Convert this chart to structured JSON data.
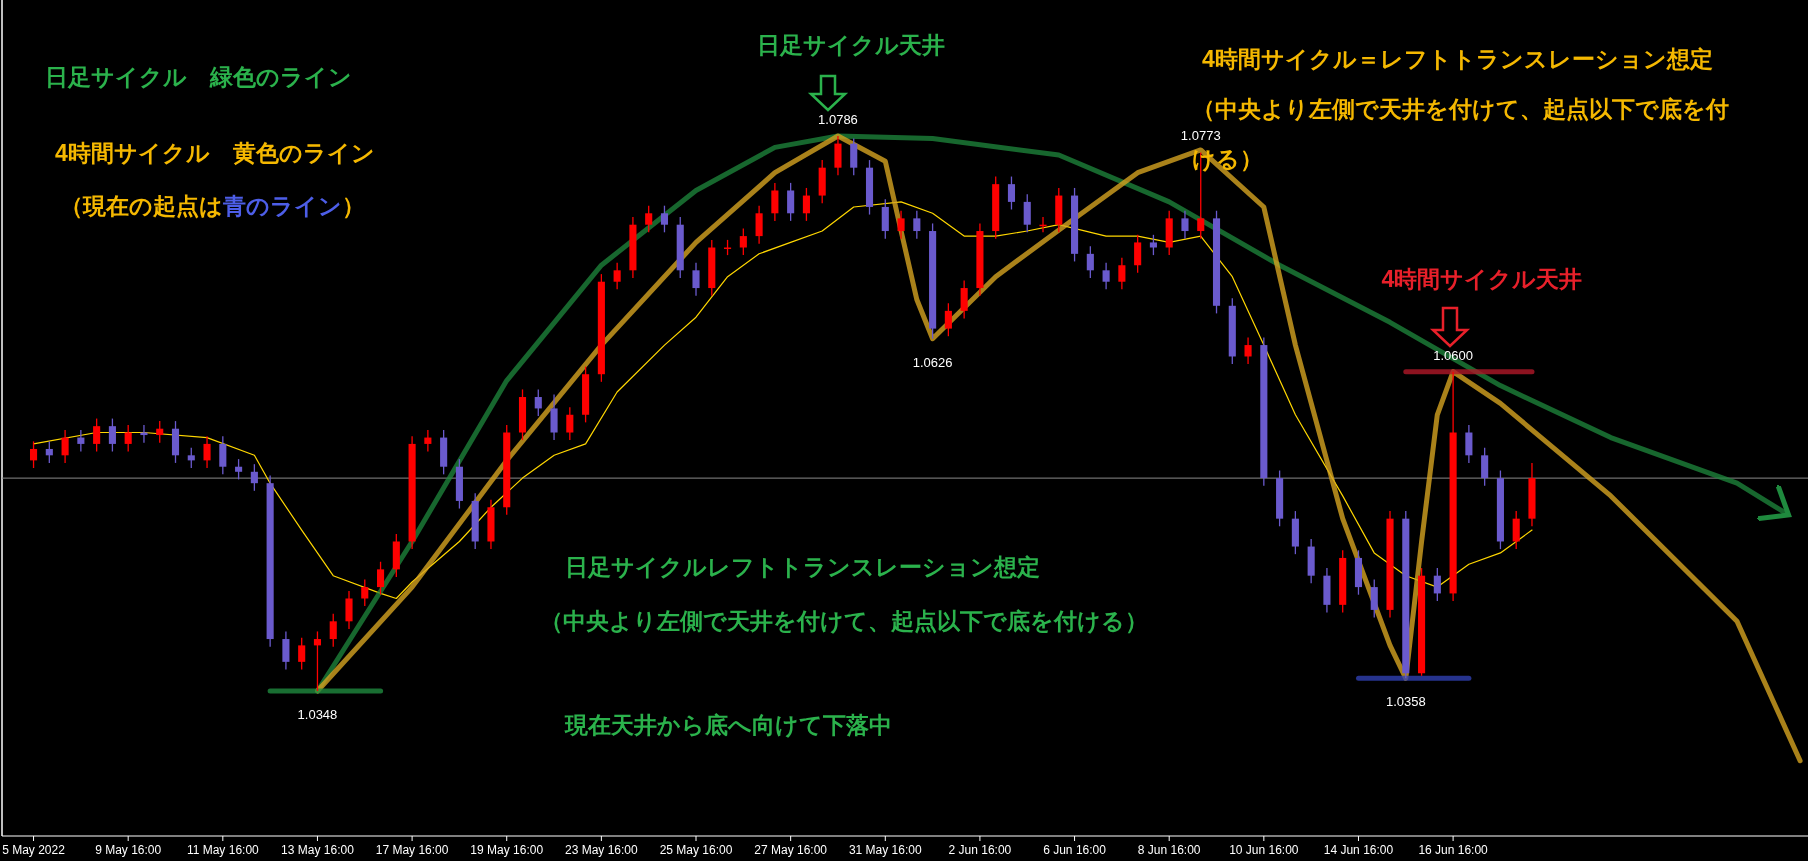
{
  "chart_data": {
    "type": "candlestick",
    "categories": [
      "5 May 2022",
      null,
      null,
      null,
      null,
      null,
      "9 May 16:00",
      null,
      null,
      null,
      null,
      null,
      "11 May 16:00",
      null,
      null,
      null,
      null,
      null,
      "13 May 16:00",
      null,
      null,
      null,
      null,
      null,
      "17 May 16:00",
      null,
      null,
      null,
      null,
      null,
      "19 May 16:00",
      null,
      null,
      null,
      null,
      null,
      "23 May 16:00",
      null,
      null,
      null,
      null,
      null,
      "25 May 16:00",
      null,
      null,
      null,
      null,
      null,
      "27 May 16:00",
      null,
      null,
      null,
      null,
      null,
      "31 May 16:00",
      null,
      null,
      null,
      null,
      null,
      "2 Jun 16:00",
      null,
      null,
      null,
      null,
      null,
      "6 Jun 16:00",
      null,
      null,
      null,
      null,
      null,
      "8 Jun 16:00",
      null,
      null,
      null,
      null,
      null,
      "10 Jun 16:00",
      null,
      null,
      null,
      null,
      null,
      "14 Jun 16:00",
      null,
      null,
      null,
      null,
      null,
      "16 Jun 16:00",
      null,
      null,
      null,
      null,
      null,
      null,
      null,
      null,
      null,
      null,
      null,
      null,
      null,
      null,
      null,
      null,
      null,
      null,
      null,
      null,
      null,
      null
    ],
    "ohlc": [
      [
        1.053,
        1.0545,
        1.0524,
        1.0539
      ],
      [
        1.0539,
        1.0545,
        1.0528,
        1.0534
      ],
      [
        1.0534,
        1.0554,
        1.0528,
        1.0548
      ],
      [
        1.0548,
        1.0554,
        1.0537,
        1.0543
      ],
      [
        1.0543,
        1.0563,
        1.0537,
        1.0557
      ],
      [
        1.0557,
        1.0563,
        1.0537,
        1.0543
      ],
      [
        1.0543,
        1.0558,
        1.0537,
        1.0552
      ],
      [
        1.0552,
        1.0558,
        1.0544,
        1.055
      ],
      [
        1.055,
        1.0561,
        1.0544,
        1.0555
      ],
      [
        1.0555,
        1.0561,
        1.0528,
        1.0534
      ],
      [
        1.0534,
        1.054,
        1.0524,
        1.053
      ],
      [
        1.053,
        1.0549,
        1.0524,
        1.0543
      ],
      [
        1.0543,
        1.0549,
        1.0519,
        1.0525
      ],
      [
        1.0525,
        1.0531,
        1.0515,
        1.0521
      ],
      [
        1.0521,
        1.0527,
        1.0506,
        1.0512
      ],
      [
        1.0512,
        1.0518,
        1.0383,
        1.0389
      ],
      [
        1.0389,
        1.0395,
        1.0365,
        1.0371
      ],
      [
        1.0371,
        1.039,
        1.0365,
        1.0384
      ],
      [
        1.0384,
        1.0395,
        1.0348,
        1.0389
      ],
      [
        1.0389,
        1.0409,
        1.0383,
        1.0403
      ],
      [
        1.0403,
        1.0427,
        1.0397,
        1.0421
      ],
      [
        1.0421,
        1.0436,
        1.0415,
        1.043
      ],
      [
        1.043,
        1.045,
        1.0424,
        1.0444
      ],
      [
        1.0444,
        1.0472,
        1.0438,
        1.0466
      ],
      [
        1.0466,
        1.0549,
        1.046,
        1.0543
      ],
      [
        1.0543,
        1.0554,
        1.0537,
        1.0548
      ],
      [
        1.0548,
        1.0554,
        1.0519,
        1.0525
      ],
      [
        1.0525,
        1.0531,
        1.0492,
        1.0498
      ],
      [
        1.0498,
        1.0504,
        1.046,
        1.0466
      ],
      [
        1.0466,
        1.0499,
        1.046,
        1.0493
      ],
      [
        1.0493,
        1.0558,
        1.0487,
        1.0552
      ],
      [
        1.0552,
        1.0586,
        1.0546,
        1.058
      ],
      [
        1.058,
        1.0586,
        1.0565,
        1.0571
      ],
      [
        1.0571,
        1.0582,
        1.0546,
        1.0552
      ],
      [
        1.0552,
        1.0572,
        1.0546,
        1.0566
      ],
      [
        1.0566,
        1.0604,
        1.056,
        1.0598
      ],
      [
        1.0598,
        1.0677,
        1.0592,
        1.0671
      ],
      [
        1.0671,
        1.0686,
        1.0665,
        1.068
      ],
      [
        1.068,
        1.0722,
        1.0674,
        1.0716
      ],
      [
        1.0716,
        1.0731,
        1.071,
        1.0725
      ],
      [
        1.0725,
        1.0731,
        1.071,
        1.0716
      ],
      [
        1.0716,
        1.0722,
        1.0674,
        1.068
      ],
      [
        1.068,
        1.0686,
        1.066,
        1.0666
      ],
      [
        1.0666,
        1.0704,
        1.066,
        1.0698
      ],
      [
        1.0698,
        1.0704,
        1.0692,
        1.0698
      ],
      [
        1.0698,
        1.0713,
        1.0692,
        1.0707
      ],
      [
        1.0707,
        1.0731,
        1.0701,
        1.0725
      ],
      [
        1.0725,
        1.0749,
        1.0719,
        1.0743
      ],
      [
        1.0743,
        1.0749,
        1.0719,
        1.0725
      ],
      [
        1.0725,
        1.0745,
        1.0719,
        1.0739
      ],
      [
        1.0739,
        1.0767,
        1.0733,
        1.0761
      ],
      [
        1.0761,
        1.0786,
        1.0755,
        1.078
      ],
      [
        1.078,
        1.0784,
        1.0755,
        1.0761
      ],
      [
        1.0761,
        1.0767,
        1.0724,
        1.073
      ],
      [
        1.073,
        1.0736,
        1.0705,
        1.0711
      ],
      [
        1.0711,
        1.0727,
        1.0705,
        1.0721
      ],
      [
        1.0721,
        1.0727,
        1.0705,
        1.0711
      ],
      [
        1.0711,
        1.0717,
        1.0626,
        1.0634
      ],
      [
        1.0634,
        1.0654,
        1.0628,
        1.0648
      ],
      [
        1.0648,
        1.0672,
        1.0642,
        1.0666
      ],
      [
        1.0666,
        1.0717,
        1.066,
        1.0711
      ],
      [
        1.0711,
        1.0754,
        1.0705,
        1.0748
      ],
      [
        1.0748,
        1.0754,
        1.0728,
        1.0734
      ],
      [
        1.0734,
        1.074,
        1.071,
        1.0716
      ],
      [
        1.0716,
        1.0722,
        1.071,
        1.0716
      ],
      [
        1.0716,
        1.0745,
        1.071,
        1.0739
      ],
      [
        1.0739,
        1.0745,
        1.0687,
        1.0693
      ],
      [
        1.0693,
        1.0699,
        1.0674,
        1.068
      ],
      [
        1.068,
        1.0686,
        1.0665,
        1.0671
      ],
      [
        1.0671,
        1.069,
        1.0665,
        1.0684
      ],
      [
        1.0684,
        1.0708,
        1.0678,
        1.0702
      ],
      [
        1.0702,
        1.0708,
        1.0692,
        1.0698
      ],
      [
        1.0698,
        1.0727,
        1.0692,
        1.0721
      ],
      [
        1.0721,
        1.0727,
        1.0705,
        1.0711
      ],
      [
        1.0711,
        1.0773,
        1.0705,
        1.0721
      ],
      [
        1.0721,
        1.0727,
        1.0646,
        1.0652
      ],
      [
        1.0652,
        1.0658,
        1.0606,
        1.0612
      ],
      [
        1.0612,
        1.0627,
        1.0606,
        1.0621
      ],
      [
        1.0621,
        1.0627,
        1.051,
        1.0516
      ],
      [
        1.0516,
        1.0522,
        1.0478,
        1.0484
      ],
      [
        1.0484,
        1.049,
        1.0456,
        1.0462
      ],
      [
        1.0462,
        1.0468,
        1.0433,
        1.0439
      ],
      [
        1.0439,
        1.0445,
        1.041,
        1.0416
      ],
      [
        1.0416,
        1.0459,
        1.041,
        1.0453
      ],
      [
        1.0453,
        1.0459,
        1.0424,
        1.043
      ],
      [
        1.043,
        1.0436,
        1.0406,
        1.0412
      ],
      [
        1.0412,
        1.049,
        1.0406,
        1.0484
      ],
      [
        1.0484,
        1.049,
        1.0358,
        1.0362
      ],
      [
        1.0362,
        1.0445,
        1.036,
        1.0439
      ],
      [
        1.0439,
        1.0445,
        1.0419,
        1.0425
      ],
      [
        1.0425,
        1.06,
        1.0419,
        1.0552
      ],
      [
        1.0552,
        1.0558,
        1.0528,
        1.0534
      ],
      [
        1.0534,
        1.054,
        1.051,
        1.0516
      ],
      [
        1.0516,
        1.0522,
        1.046,
        1.0466
      ],
      [
        1.0466,
        1.049,
        1.046,
        1.0484
      ],
      [
        1.0484,
        1.0528,
        1.0478,
        1.0516
      ],
      null,
      null,
      null,
      null,
      null,
      null,
      null,
      null,
      null,
      null,
      null,
      null,
      null,
      null,
      null,
      null,
      null
    ],
    "colors": [
      "#ff0000",
      "#6a5acd",
      "#ff0000",
      "#6a5acd",
      "#ff0000",
      "#6a5acd",
      "#ff0000",
      "#6a5acd",
      "#ff0000",
      "#6a5acd",
      "#6a5acd",
      "#ff0000",
      "#6a5acd",
      "#6a5acd",
      "#6a5acd",
      "#6a5acd",
      "#6a5acd",
      "#ff0000",
      "#ff0000",
      "#ff0000",
      "#ff0000",
      "#ff0000",
      "#ff0000",
      "#ff0000",
      "#ff0000",
      "#ff0000",
      "#6a5acd",
      "#6a5acd",
      "#6a5acd",
      "#ff0000",
      "#ff0000",
      "#ff0000",
      "#6a5acd",
      "#6a5acd",
      "#ff0000",
      "#ff0000",
      "#ff0000",
      "#ff0000",
      "#ff0000",
      "#ff0000",
      "#6a5acd",
      "#6a5acd",
      "#6a5acd",
      "#ff0000",
      "#ff0000",
      "#ff0000",
      "#ff0000",
      "#ff0000",
      "#6a5acd",
      "#ff0000",
      "#ff0000",
      "#ff0000",
      "#6a5acd",
      "#6a5acd",
      "#6a5acd",
      "#ff0000",
      "#6a5acd",
      "#6a5acd",
      "#ff0000",
      "#ff0000",
      "#ff0000",
      "#ff0000",
      "#6a5acd",
      "#6a5acd",
      "#ff0000",
      "#ff0000",
      "#6a5acd",
      "#6a5acd",
      "#6a5acd",
      "#ff0000",
      "#ff0000",
      "#6a5acd",
      "#ff0000",
      "#6a5acd",
      "#ff0000",
      "#6a5acd",
      "#6a5acd",
      "#ff0000",
      "#6a5acd",
      "#6a5acd",
      "#6a5acd",
      "#6a5acd",
      "#6a5acd",
      "#ff0000",
      "#6a5acd",
      "#6a5acd",
      "#ff0000",
      "#6a5acd",
      "#ff0000",
      "#6a5acd",
      "#ff0000",
      "#6a5acd",
      "#6a5acd",
      "#6a5acd",
      "#ff0000",
      "#ff0000",
      null,
      null,
      null,
      null,
      null,
      null,
      null,
      null,
      null,
      null,
      null,
      null,
      null,
      null,
      null,
      null,
      null
    ],
    "series": [
      {
        "type": "line",
        "color": "#ffd700",
        "values": [
          1.0543,
          null,
          null,
          null,
          1.0552,
          null,
          null,
          1.0552,
          null,
          null,
          null,
          1.0548,
          null,
          null,
          1.0534,
          1.0512,
          null,
          1.0475,
          null,
          1.0439,
          null,
          null,
          1.0425,
          1.0421,
          1.0434,
          null,
          null,
          1.0466,
          null,
          1.0493,
          null,
          1.0516,
          null,
          1.0534,
          null,
          1.0543,
          null,
          1.0584,
          null,
          null,
          1.0621,
          null,
          1.0643,
          null,
          1.0675,
          null,
          1.0693,
          null,
          1.0702,
          null,
          1.0711,
          null,
          1.073,
          null,
          null,
          1.0734,
          null,
          1.0725,
          null,
          1.0707,
          null,
          1.0707,
          null,
          1.0711,
          null,
          1.0716,
          null,
          null,
          1.0707,
          null,
          1.0707,
          null,
          1.0702,
          null,
          1.0707,
          null,
          1.0675,
          null,
          1.0621,
          null,
          1.0566,
          null,
          null,
          1.0502,
          null,
          1.0457,
          null,
          1.0439,
          null,
          1.043,
          null,
          1.0448,
          null,
          1.0457,
          null,
          1.0475,
          null,
          null,
          null,
          null,
          null,
          null,
          null,
          null,
          null,
          null,
          null,
          null,
          null,
          null,
          null,
          null,
          null
        ]
      },
      {
        "type": "line",
        "color": "#1f8a3e",
        "values": [
          null,
          null,
          null,
          null,
          null,
          null,
          null,
          null,
          null,
          null,
          null,
          null,
          null,
          null,
          null,
          null,
          null,
          null,
          1.0348,
          null,
          null,
          null,
          null,
          null,
          1.0466,
          null,
          null,
          null,
          null,
          null,
          1.0593,
          null,
          null,
          null,
          null,
          null,
          1.0684,
          null,
          null,
          null,
          null,
          null,
          1.0743,
          null,
          null,
          null,
          null,
          1.0777,
          null,
          null,
          null,
          1.0786,
          null,
          null,
          null,
          null,
          null,
          1.0784,
          null,
          null,
          null,
          null,
          null,
          null,
          null,
          1.0771,
          null,
          null,
          null,
          null,
          null,
          null,
          1.0734,
          null,
          null,
          null,
          null,
          null,
          null,
          1.0684,
          null,
          null,
          null,
          null,
          null,
          null,
          1.0639,
          null,
          null,
          null,
          null,
          null,
          null,
          1.0589,
          null,
          null,
          null,
          null,
          null,
          null,
          1.0548,
          null,
          null,
          null,
          null,
          null,
          null,
          null,
          1.0512,
          null,
          null,
          1.0489,
          null
        ]
      },
      {
        "type": "line",
        "color": "#d4a320",
        "values": [
          null,
          null,
          null,
          null,
          null,
          null,
          null,
          null,
          null,
          null,
          null,
          null,
          null,
          null,
          null,
          null,
          null,
          null,
          1.0348,
          null,
          null,
          null,
          null,
          null,
          1.043,
          null,
          null,
          null,
          null,
          null,
          1.053,
          null,
          null,
          null,
          null,
          null,
          1.0621,
          null,
          null,
          null,
          null,
          null,
          1.0702,
          null,
          null,
          null,
          null,
          1.0757,
          null,
          null,
          null,
          1.0786,
          null,
          null,
          1.0766,
          1.0711,
          1.0657,
          1.0626,
          null,
          null,
          null,
          1.0675,
          null,
          null,
          null,
          null,
          1.0721,
          null,
          null,
          null,
          1.0757,
          null,
          null,
          null,
          1.0775,
          null,
          null,
          null,
          1.073,
          null,
          1.0621,
          null,
          null,
          1.0484,
          null,
          null,
          1.0384,
          1.0358,
          1.0466,
          1.0566,
          1.06,
          null,
          null,
          1.0575,
          null,
          null,
          null,
          null,
          null,
          null,
          1.0502,
          null,
          null,
          null,
          null,
          null,
          null,
          null,
          1.0403,
          null,
          null,
          null,
          1.0293
        ]
      },
      {
        "type": "line",
        "color": "#1f8a3e",
        "values": [
          null,
          null,
          null,
          null,
          null,
          null,
          null,
          null,
          null,
          null,
          null,
          null,
          null,
          null,
          null,
          1.0348,
          1.0348,
          1.0348,
          1.0348,
          1.0348,
          1.0348,
          1.0348,
          1.0348,
          null,
          null,
          null,
          null,
          null,
          null,
          null,
          null,
          null,
          null,
          null,
          null,
          null,
          null,
          null,
          null,
          null,
          null,
          null,
          null,
          null,
          null,
          null,
          null,
          null,
          null,
          null,
          null,
          null,
          null,
          null,
          null,
          null,
          null,
          null,
          null,
          null,
          null,
          null,
          null,
          null,
          null,
          null,
          null,
          null,
          null,
          null,
          null,
          null,
          null,
          null,
          null,
          null,
          null,
          null,
          null,
          null,
          null,
          null,
          null,
          null,
          null,
          null,
          null,
          null,
          null,
          null,
          null,
          null,
          null,
          null,
          null,
          null,
          null,
          null,
          null,
          null,
          null,
          null,
          null,
          null,
          null,
          null,
          null,
          null,
          null,
          null,
          null,
          null,
          null
        ]
      },
      {
        "type": "line",
        "color": "#3040b0",
        "values": [
          null,
          null,
          null,
          null,
          null,
          null,
          null,
          null,
          null,
          null,
          null,
          null,
          null,
          null,
          null,
          null,
          null,
          null,
          null,
          null,
          null,
          null,
          null,
          null,
          null,
          null,
          null,
          null,
          null,
          null,
          null,
          null,
          null,
          null,
          null,
          null,
          null,
          null,
          null,
          null,
          null,
          null,
          null,
          null,
          null,
          null,
          null,
          null,
          null,
          null,
          null,
          null,
          null,
          null,
          null,
          null,
          null,
          null,
          null,
          null,
          null,
          null,
          null,
          null,
          null,
          null,
          null,
          null,
          null,
          null,
          null,
          null,
          null,
          null,
          null,
          null,
          null,
          null,
          null,
          null,
          null,
          null,
          null,
          null,
          1.0358,
          1.0358,
          1.0358,
          1.0358,
          1.0358,
          1.0358,
          1.0358,
          1.0358,
          null,
          null,
          null,
          null,
          null,
          null,
          null,
          null,
          null,
          null,
          null,
          null,
          null,
          null,
          null,
          null,
          null,
          null,
          null,
          null,
          null
        ]
      },
      {
        "type": "line",
        "color": "#b01828",
        "values": [
          null,
          null,
          null,
          null,
          null,
          null,
          null,
          null,
          null,
          null,
          null,
          null,
          null,
          null,
          null,
          null,
          null,
          null,
          null,
          null,
          null,
          null,
          null,
          null,
          null,
          null,
          null,
          null,
          null,
          null,
          null,
          null,
          null,
          null,
          null,
          null,
          null,
          null,
          null,
          null,
          null,
          null,
          null,
          null,
          null,
          null,
          null,
          null,
          null,
          null,
          null,
          null,
          null,
          null,
          null,
          null,
          null,
          null,
          null,
          null,
          null,
          null,
          null,
          null,
          null,
          null,
          null,
          null,
          null,
          null,
          null,
          null,
          null,
          null,
          null,
          null,
          null,
          null,
          null,
          null,
          null,
          null,
          null,
          null,
          null,
          null,
          null,
          1.06,
          1.06,
          1.06,
          1.06,
          1.06,
          1.06,
          1.06,
          1.06,
          1.06,
          null,
          null,
          null,
          null,
          null,
          null,
          null,
          null,
          null,
          null,
          null,
          null,
          null,
          null,
          null,
          null,
          null
        ]
      }
    ],
    "ref_lines": [
      {
        "axis": "y",
        "value": 1.0516,
        "color": "#8a8a8a"
      }
    ],
    "tick_labels": "x",
    "annotations": [
      {
        "text": "1.0786",
        "y": 1.0786
      },
      {
        "text": "1.0348",
        "y": 1.0348
      },
      {
        "text": "1.0626",
        "y": 1.0626
      },
      {
        "text": "1.0773",
        "y": 1.0773
      },
      {
        "text": "1.0600",
        "y": 1.06
      },
      {
        "text": "1.0358",
        "y": 1.0358
      },
      "日足サイクル天井",
      "4時間サイクル天井",
      "日足サイクル　緑色のライン",
      "4時間サイクル　黄色のライン",
      "（現在の起点は",
      "青のライン",
      "）",
      "4時間サイクル＝レフトトランスレーション想定",
      "（中央より左側で天井を付けて、起点以下で底を付ける）",
      "日足サイクルレフトトランスレーション想定",
      "（中央より左側で天井を付けて、起点以下で底を付ける）",
      "現在天井から底へ向けて下落中"
    ]
  }
}
